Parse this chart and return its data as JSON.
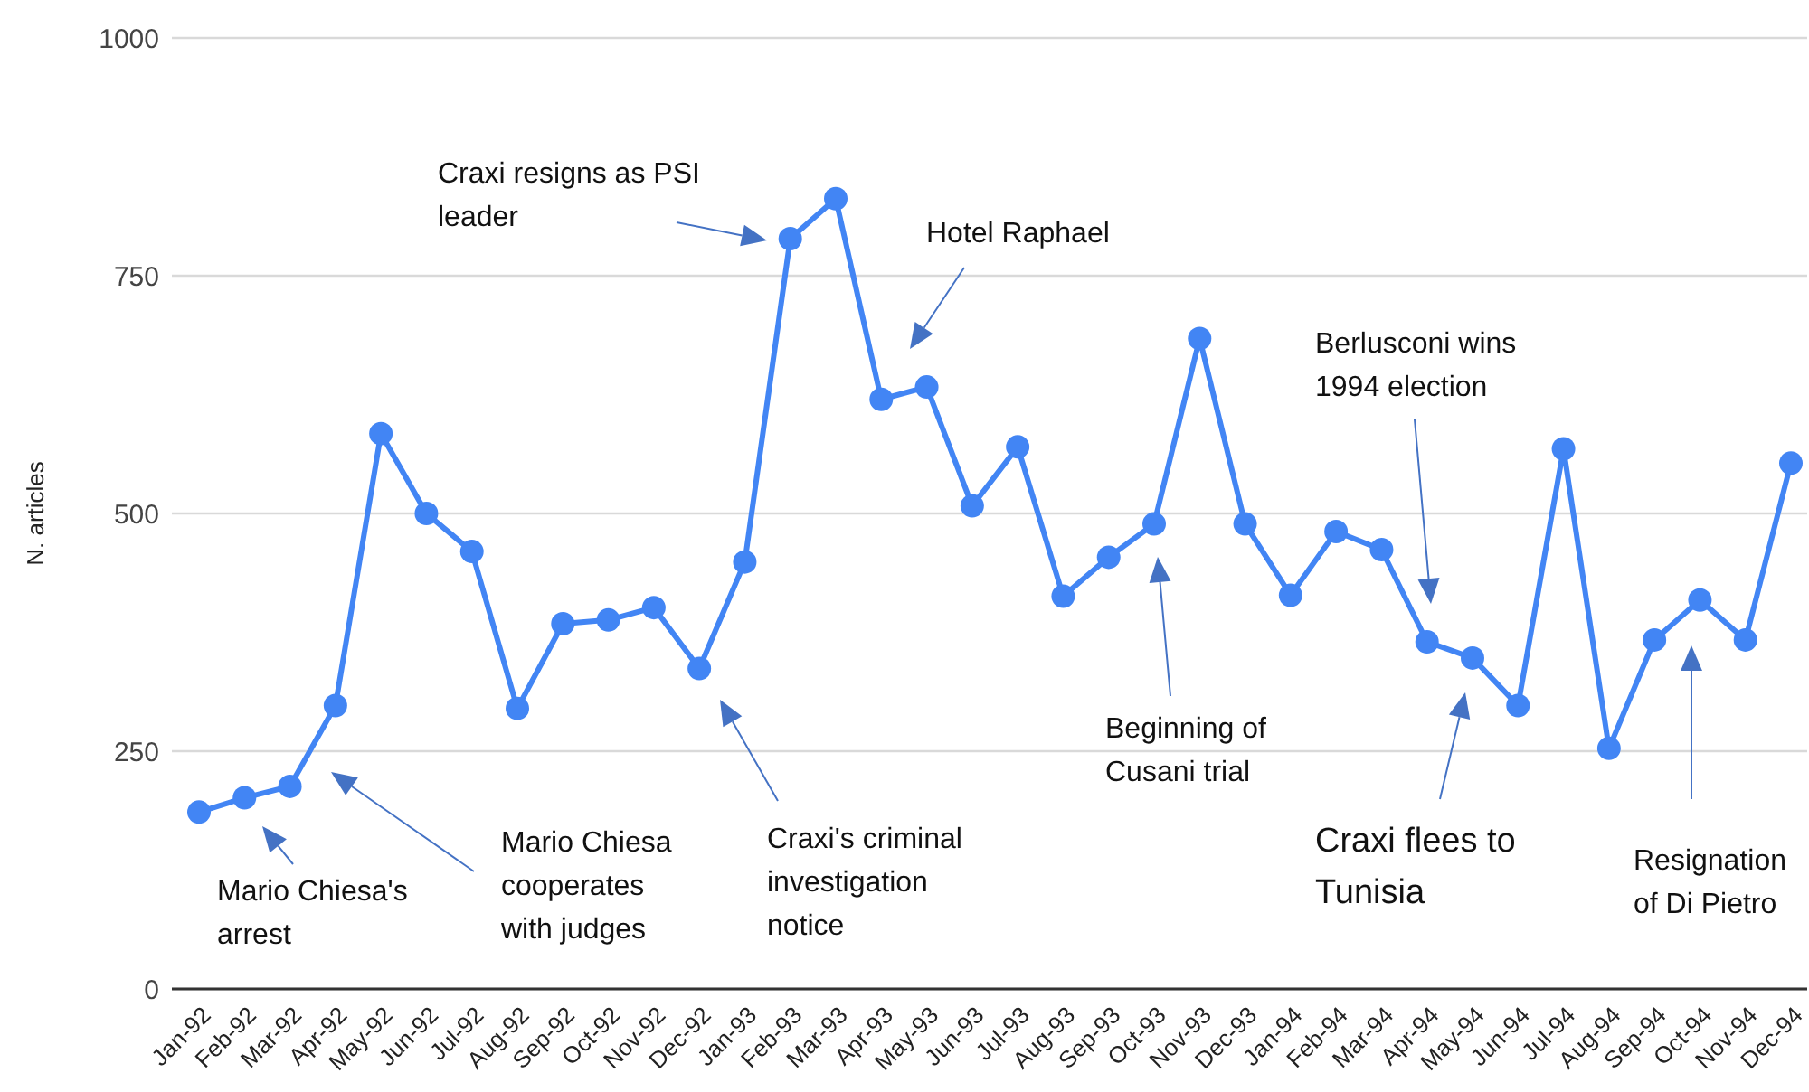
{
  "chart_data": {
    "type": "line",
    "ylabel": "N. articles",
    "categories": [
      "Jan-92",
      "Feb-92",
      "Mar-92",
      "Apr-92",
      "May-92",
      "Jun-92",
      "Jul-92",
      "Aug-92",
      "Sep-92",
      "Oct-92",
      "Nov-92",
      "Dec-92",
      "Jan-93",
      "Feb-93",
      "Mar-93",
      "Apr-93",
      "May-93",
      "Jun-93",
      "Jul-93",
      "Aug-93",
      "Sep-93",
      "Oct-93",
      "Nov-93",
      "Dec-93",
      "Jan-94",
      "Feb-94",
      "Mar-94",
      "Apr-94",
      "May-94",
      "Jun-94",
      "Jul-94",
      "Aug-94",
      "Sep-94",
      "Oct-94",
      "Nov-94",
      "Dec-94"
    ],
    "series": [
      {
        "color": "#4285f4",
        "values": [
          186,
          201,
          213,
          298,
          584,
          500,
          460,
          295,
          384,
          388,
          401,
          337,
          449,
          789,
          831,
          620,
          633,
          508,
          570,
          413,
          454,
          489,
          684,
          489,
          414,
          481,
          462,
          365,
          348,
          298,
          568,
          253,
          367,
          409,
          367,
          553
        ]
      }
    ],
    "ylim": [
      0,
      1000
    ],
    "yticks": [
      0,
      250,
      500,
      750,
      1000
    ],
    "grid": "y",
    "marker": "circle",
    "line_style": "solid",
    "annotations": [
      "Mario Chiesa's arrest",
      "Mario Chiesa cooperates with judges",
      "Craxi's criminal investigation notice",
      "Craxi resigns as PSI leader",
      "Hotel Raphael",
      "Beginning of Cusani trial",
      "Berlusconi wins 1994 election",
      "Craxi flees to Tunisia",
      "Resignation of Di Pietro"
    ]
  }
}
